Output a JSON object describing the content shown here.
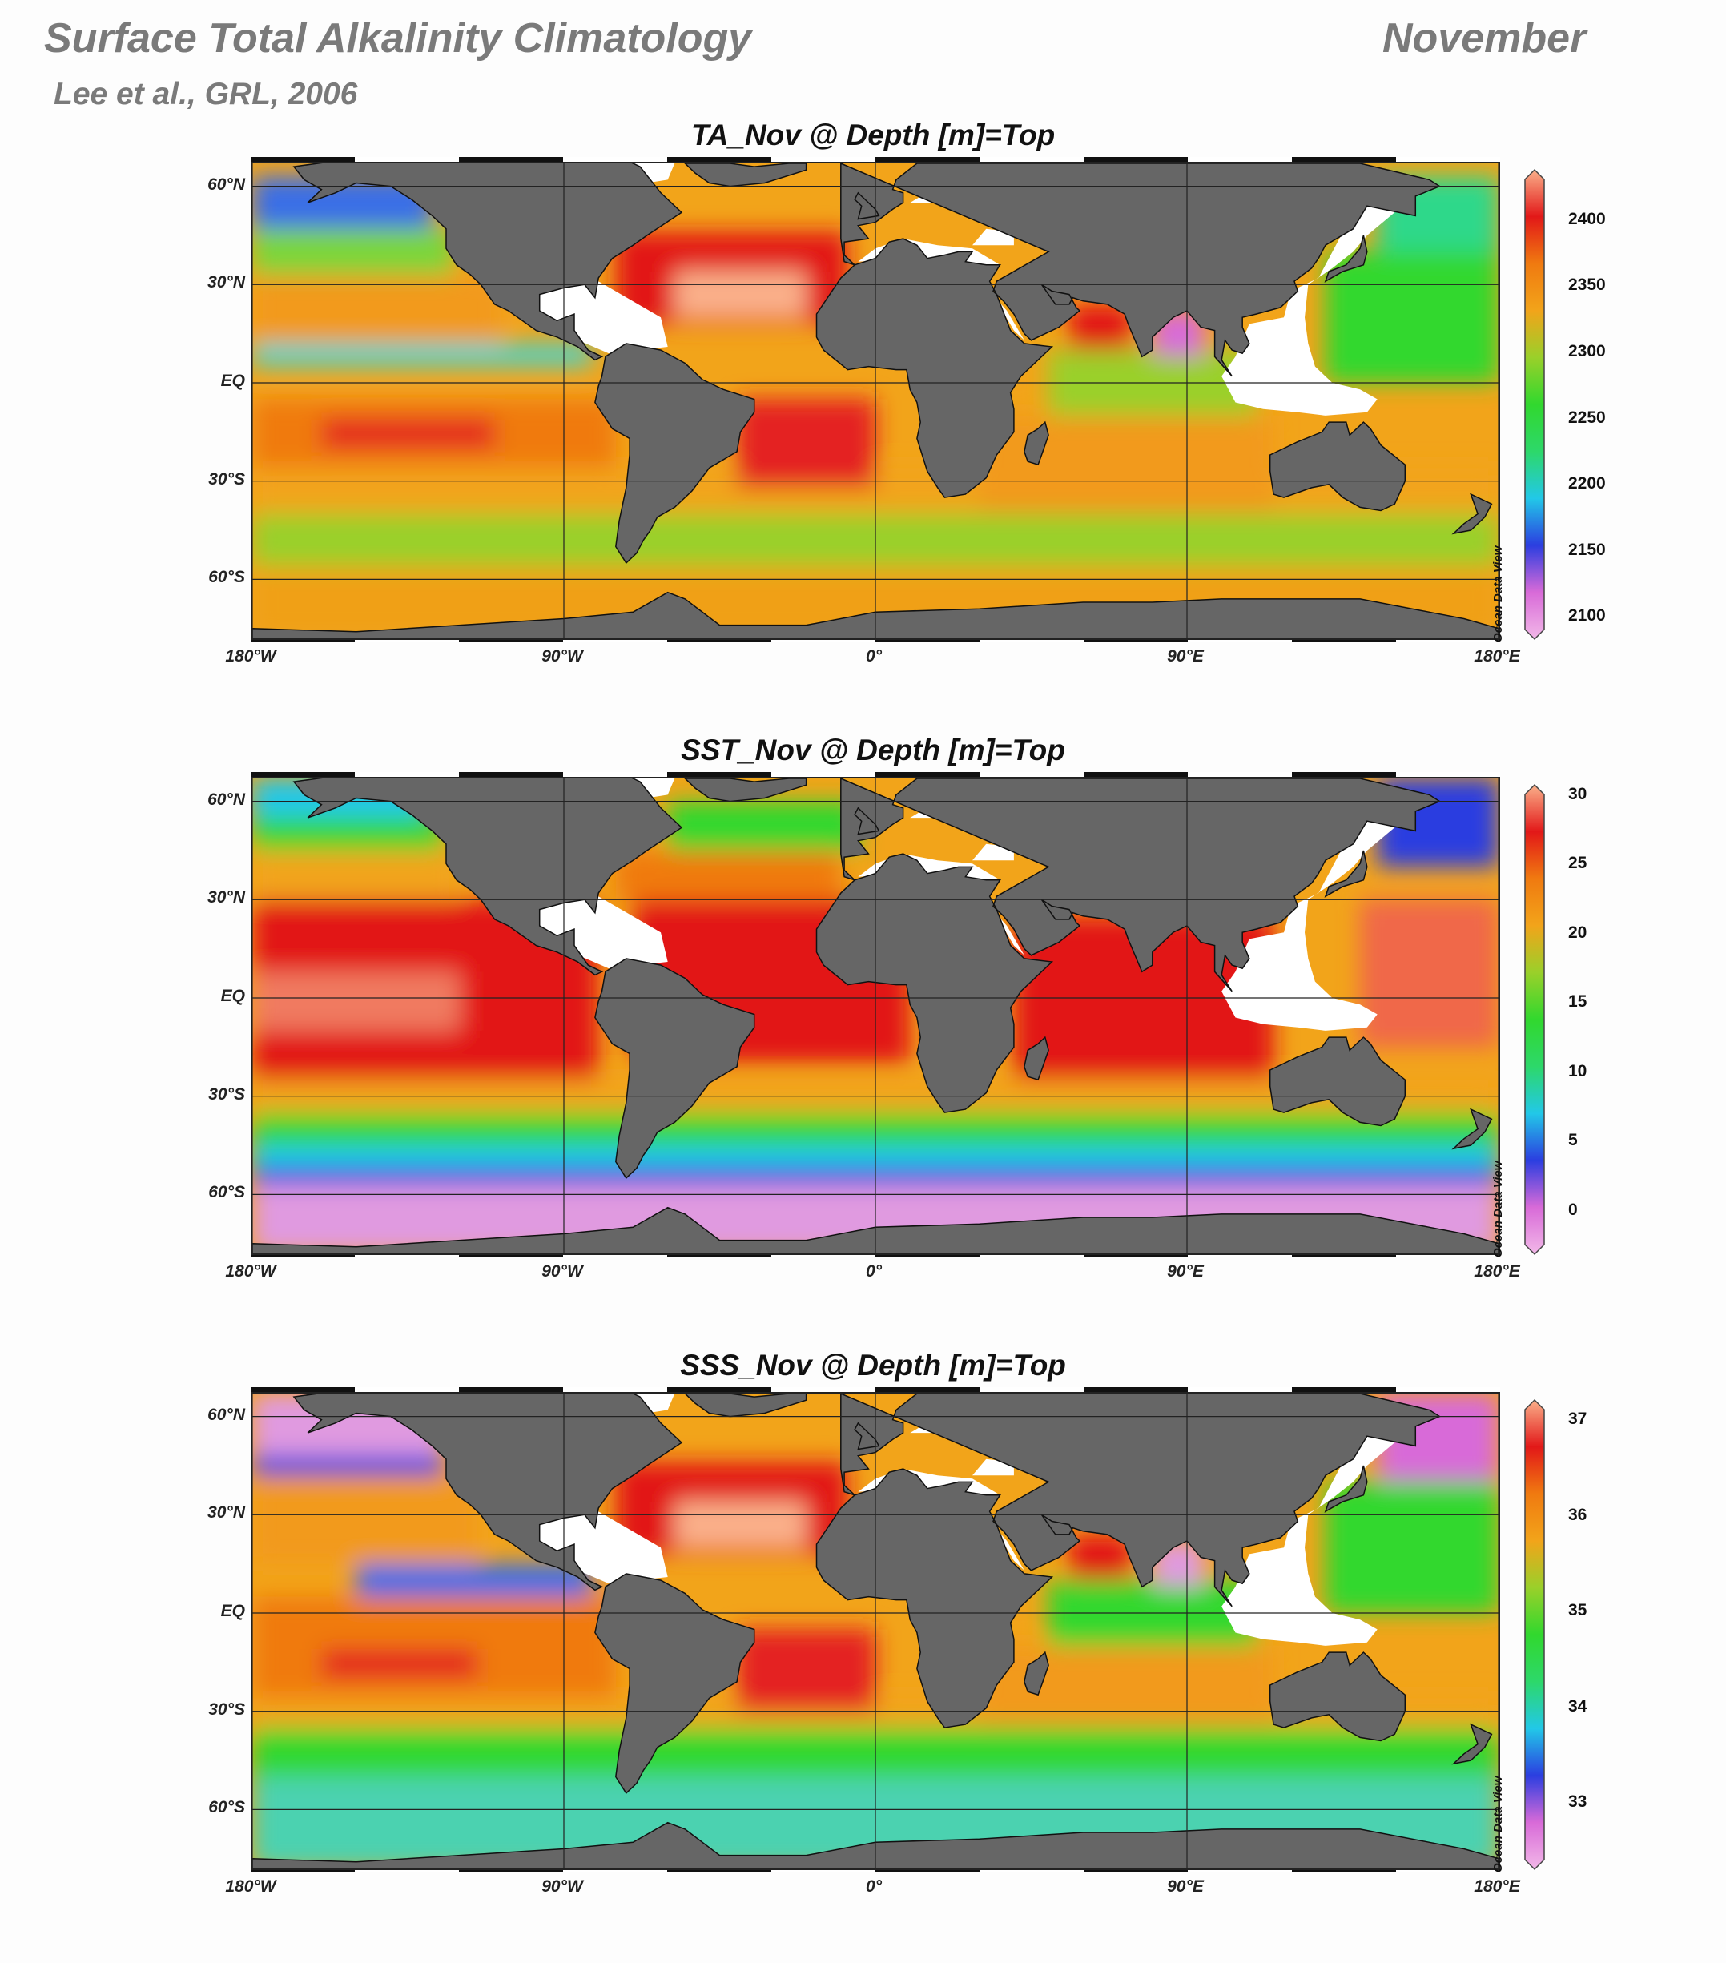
{
  "header": {
    "title": "Surface Total Alkalinity Climatology",
    "month": "November",
    "citation": "Lee et al., GRL, 2006"
  },
  "map_axes": {
    "lon_ticks": [
      "180°W",
      "90°W",
      "0°",
      "90°E",
      "180°E"
    ],
    "lat_ticks": [
      "60°N",
      "30°N",
      "EQ",
      "30°S",
      "60°S"
    ],
    "lon_values": [
      -180,
      -90,
      0,
      90,
      180
    ],
    "lat_values": [
      60,
      30,
      0,
      -30,
      -60
    ],
    "lon_range": [
      -180,
      180
    ],
    "lat_range": [
      -78,
      67
    ],
    "land_color": "#666666",
    "nodata_color": "#ffffff"
  },
  "credit": "Ocean Data View",
  "colormap": [
    "#f2b8e8",
    "#d86ad8",
    "#2b3ee0",
    "#22c8e8",
    "#2dd86a",
    "#31d82e",
    "#9ad02a",
    "#f2a41a",
    "#f07a10",
    "#e21818",
    "#fab08a"
  ],
  "panels": [
    {
      "id": "ta",
      "title": "TA_Nov @ Depth [m]=Top",
      "variable": "TA",
      "units": "",
      "colorbar_range": [
        2090,
        2430
      ],
      "colorbar_ticks": [
        2400,
        2350,
        2300,
        2250,
        2200,
        2150,
        2100
      ]
    },
    {
      "id": "sst",
      "title": "SST_Nov @ Depth [m]=Top",
      "variable": "SST",
      "units": "",
      "colorbar_range": [
        -2.5,
        30
      ],
      "colorbar_ticks": [
        30,
        25,
        20,
        15,
        10,
        5,
        0
      ]
    },
    {
      "id": "sss",
      "title": "SSS_Nov @ Depth [m]=Top",
      "variable": "SSS",
      "units": "",
      "colorbar_range": [
        32.4,
        37.1
      ],
      "colorbar_ticks": [
        37,
        36,
        35,
        34,
        33
      ]
    }
  ]
}
